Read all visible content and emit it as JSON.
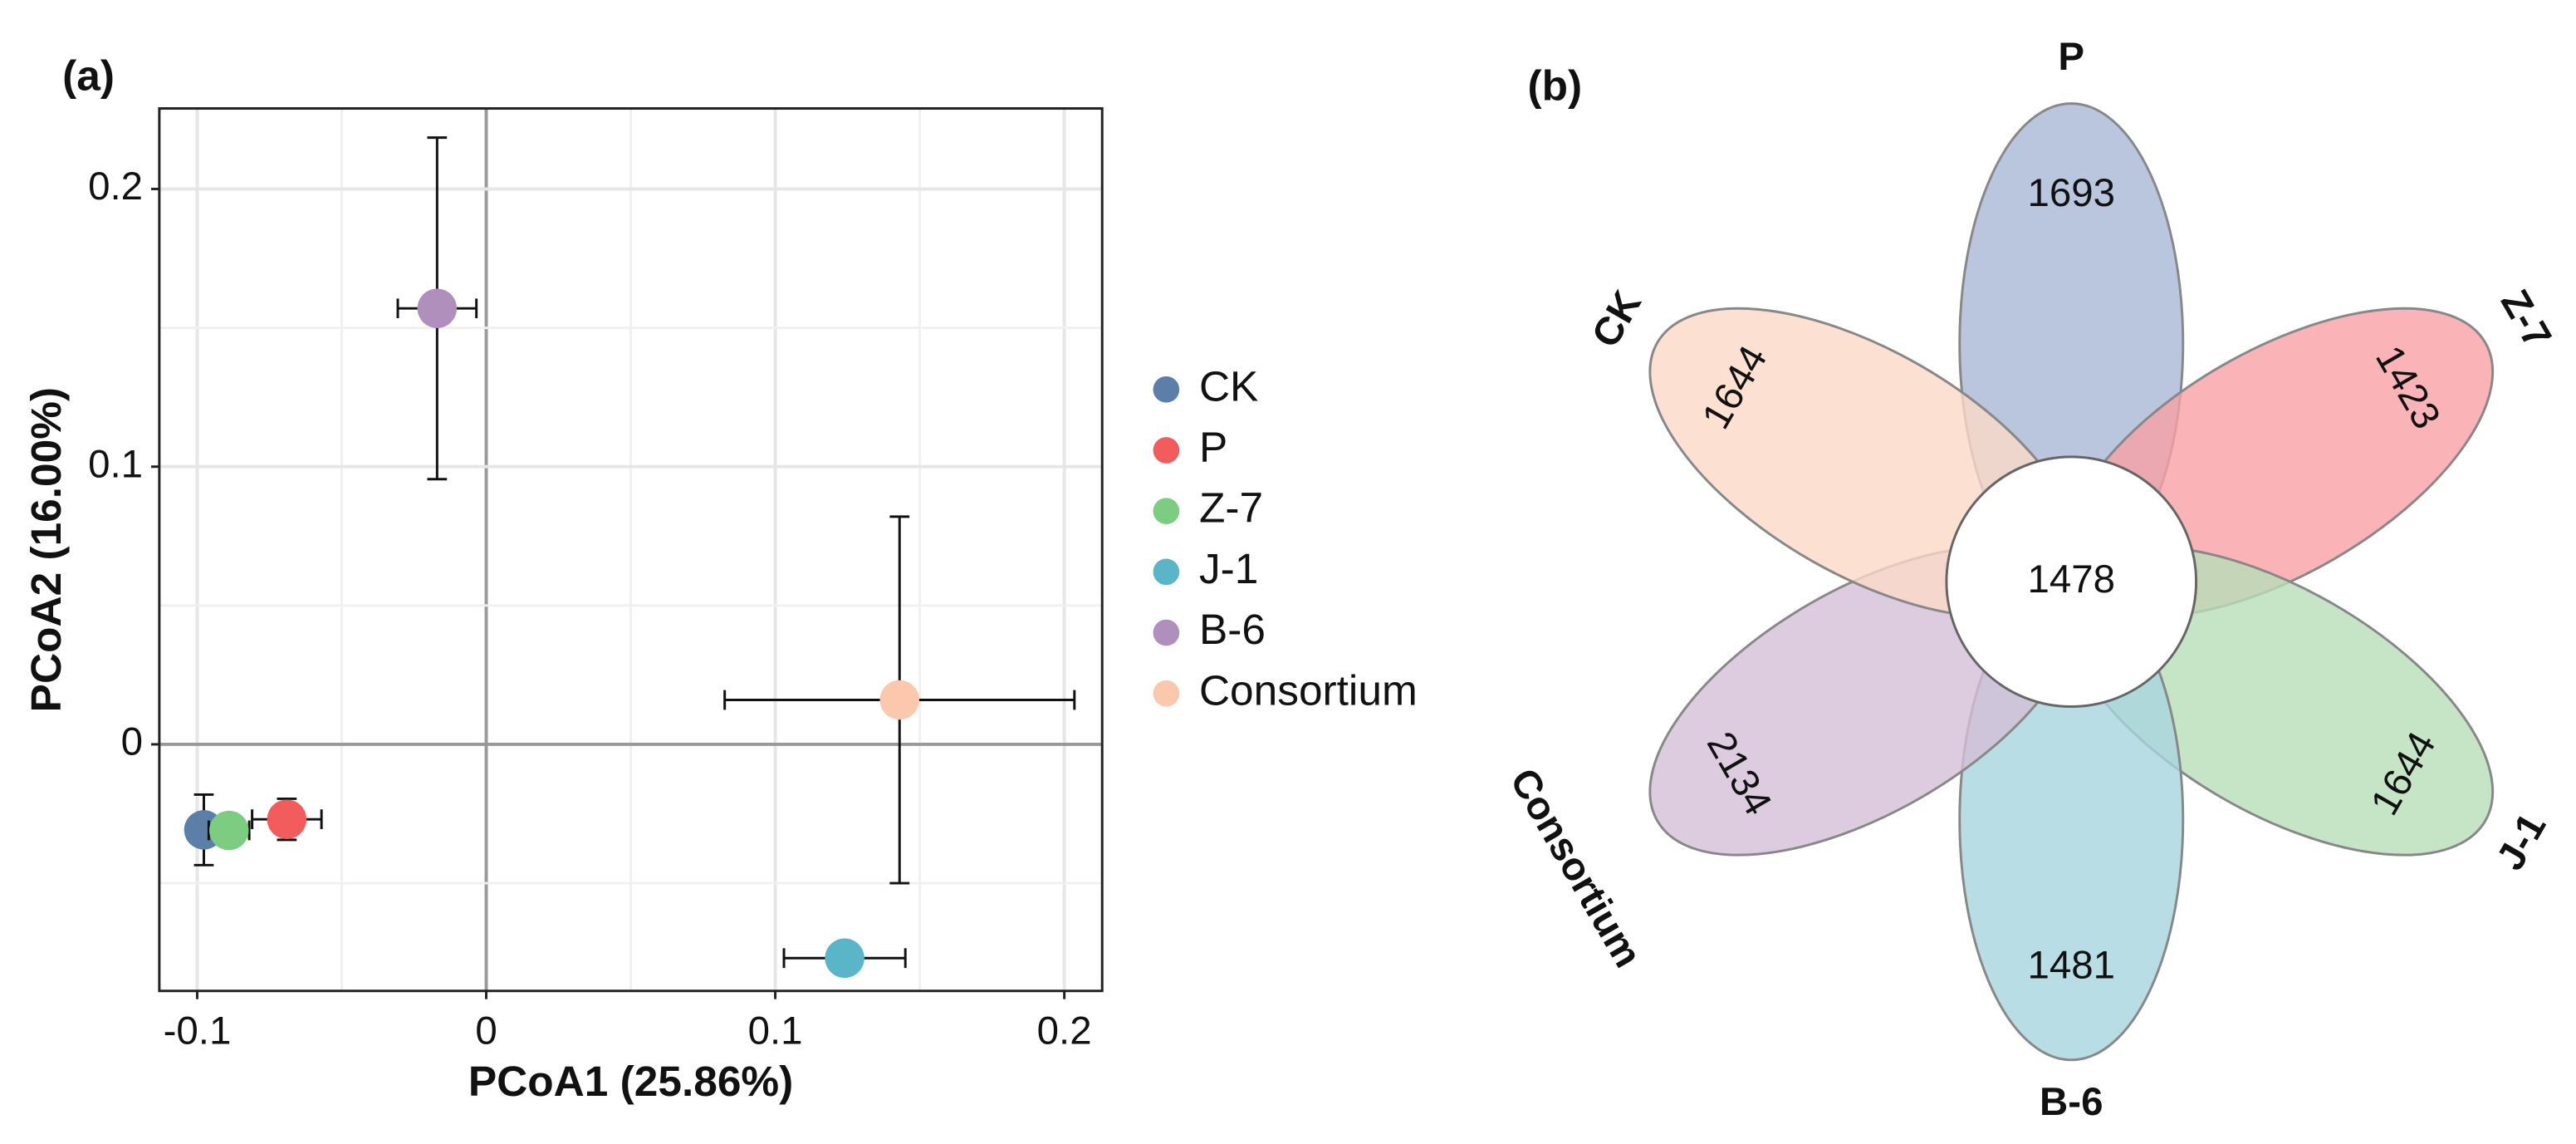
{
  "chart_data": [
    {
      "type": "scatter",
      "panel_label": "(a)",
      "x_label": "PCoA1 (25.86%)",
      "y_label": "PCoA2 (16.00%)",
      "xlim": [
        -0.1131,
        0.2131
      ],
      "ylim": [
        -0.0888,
        0.229
      ],
      "xticks": [
        -0.1,
        0,
        0.1,
        0.2
      ],
      "yticks": [
        0,
        0.1,
        0.2
      ],
      "grid": true,
      "legend": "right",
      "series": [
        {
          "name": "CK",
          "color": "#5b7fa8",
          "x": [
            -0.0977
          ],
          "values": [
            -0.0308
          ],
          "xerr": [
            0.004
          ],
          "yerr": [
            0.0127
          ]
        },
        {
          "name": "P",
          "color": "#f25c5c",
          "x": [
            -0.069
          ],
          "values": [
            -0.027
          ],
          "xerr": [
            0.012
          ],
          "yerr": [
            0.0074
          ]
        },
        {
          "name": "Z-7",
          "color": "#7ccd82",
          "x": [
            -0.089
          ],
          "values": [
            -0.031
          ],
          "xerr": [
            0.007
          ],
          "yerr": [
            0.004
          ]
        },
        {
          "name": "J-1",
          "color": "#5ab5c8",
          "x": [
            0.124
          ],
          "values": [
            -0.077
          ],
          "xerr": [
            0.021
          ],
          "yerr": [
            0.003
          ]
        },
        {
          "name": "B-6",
          "color": "#b08fbd",
          "x": [
            -0.017
          ],
          "values": [
            0.157
          ],
          "xerr": [
            0.0136
          ],
          "yerr": [
            0.0615
          ]
        },
        {
          "name": "Consortium",
          "color": "#fbc8ae",
          "x": [
            0.143
          ],
          "values": [
            0.016
          ],
          "xerr": [
            0.0605
          ],
          "yerr": [
            0.066
          ]
        }
      ]
    },
    {
      "type": "flower",
      "panel_label": "(b)",
      "core": "1478",
      "petals": [
        {
          "name": "P",
          "label": "1693",
          "color": "#a9b8d6"
        },
        {
          "name": "Z-7",
          "label": "1423",
          "color": "#f9a0a4"
        },
        {
          "name": "J-1",
          "label": "1644",
          "color": "#b7deb8"
        },
        {
          "name": "B-6",
          "label": "1481",
          "color": "#a8d4de"
        },
        {
          "name": "Consortium",
          "label": "2134",
          "color": "#d4bfd8"
        },
        {
          "name": "CK",
          "label": "1644",
          "color": "#fbd9c8"
        }
      ]
    }
  ]
}
